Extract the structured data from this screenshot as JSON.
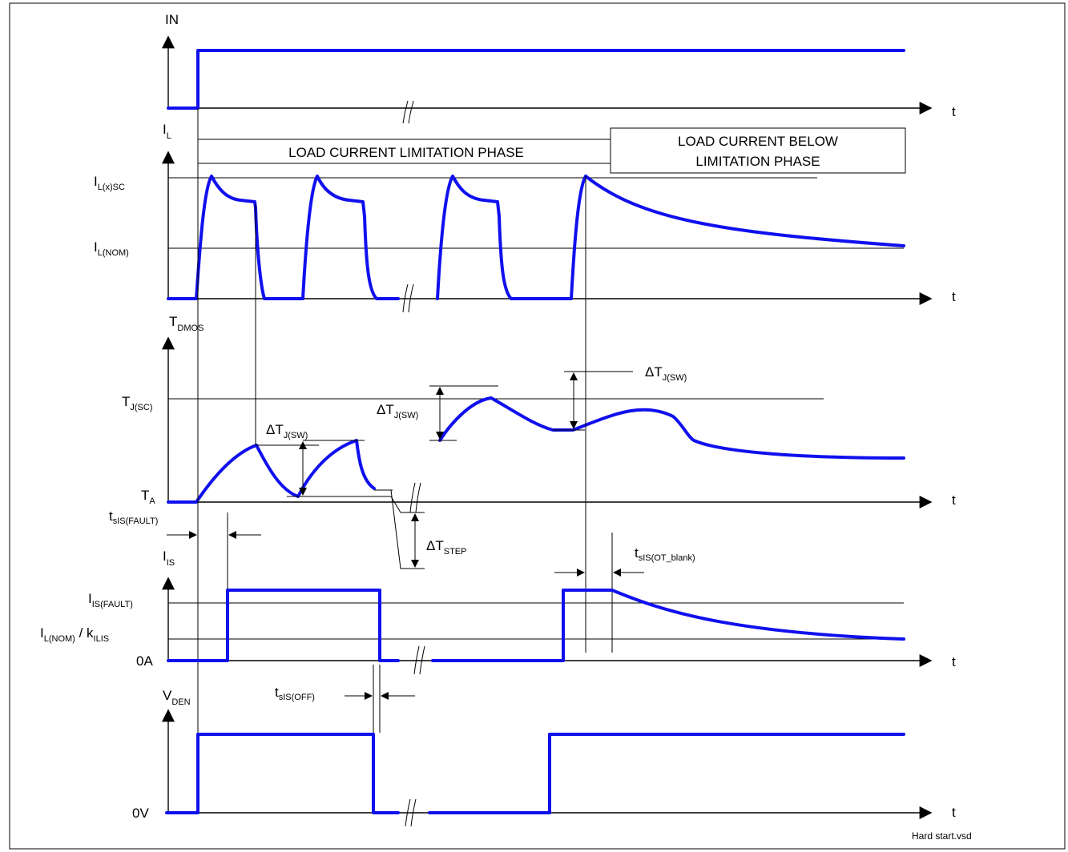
{
  "signals": {
    "in": {
      "name": "IN"
    },
    "il": {
      "name": "I",
      "sub": "L",
      "level_sc": "I",
      "level_sc_sub": "L(x)SC",
      "level_nom": "I",
      "level_nom_sub": "L(NOM)"
    },
    "tdmos": {
      "name": "T",
      "sub": "DMOS",
      "level_tjsc": "T",
      "level_tjsc_sub": "J(SC)",
      "level_ta": "T",
      "level_ta_sub": "A"
    },
    "is": {
      "name": "I",
      "sub": "IS",
      "level_fault": "I",
      "level_fault_sub": "IS(FAULT)",
      "level_nom_a": "I",
      "level_nom_a_sub": "L(NOM)",
      "level_nom_b": " / k",
      "level_nom_b_sub": "ILIS",
      "level_zero": "0A"
    },
    "vden": {
      "name": "V",
      "sub": "DEN",
      "level_zero": "0V"
    }
  },
  "time_axis_label": "t",
  "phases": {
    "limitation": "LOAD CURRENT LIMITATION PHASE",
    "below_line1": "LOAD CURRENT BELOW",
    "below_line2": "LIMITATION PHASE"
  },
  "annotations": {
    "delta": "Δ",
    "dtjsw_main": "T",
    "dtjsw_sub": "J(SW)",
    "dtstep_main": "T",
    "dtstep_sub": "STEP",
    "tsis_fault_main": "t",
    "tsis_fault_sub": "sIS(FAULT)",
    "tsis_off_main": "t",
    "tsis_off_sub": "sIS(OFF)",
    "tsis_ot_main": "t",
    "tsis_ot_sub": "sIS(OT_blank)"
  },
  "footer": "Hard start.vsd",
  "colors": {
    "signal": "#1010ee",
    "line": "#000000"
  }
}
